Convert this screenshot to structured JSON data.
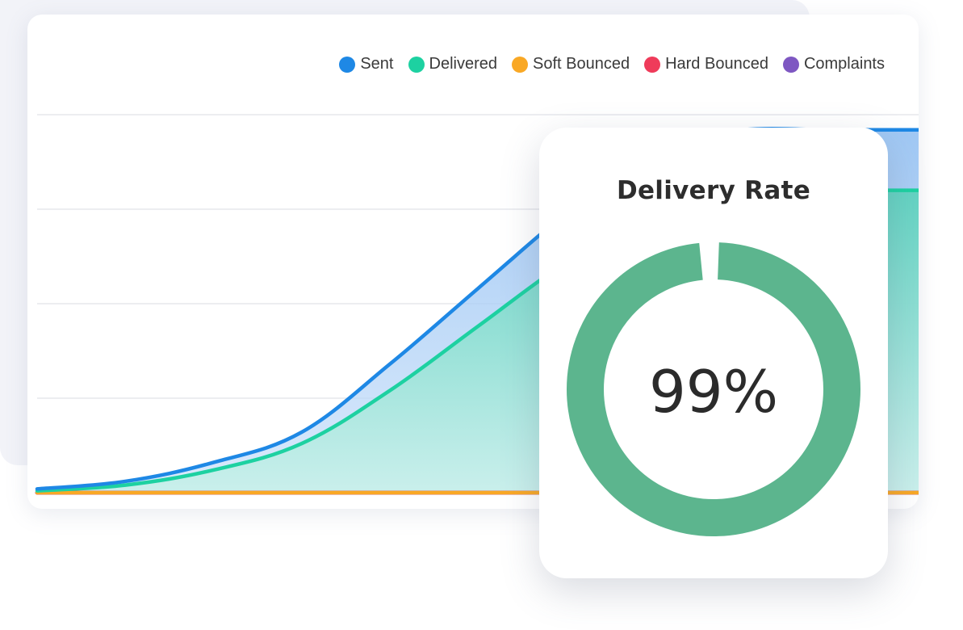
{
  "chart_data": {
    "type": "area",
    "title": "",
    "xlabel": "",
    "ylabel": "",
    "grid": true,
    "legend_position": "top-right",
    "ylim": [
      0,
      100
    ],
    "x": [
      0,
      1,
      2,
      3,
      4,
      5,
      6,
      7,
      8,
      9,
      10
    ],
    "series": [
      {
        "name": "Sent",
        "color": "#1e88e5",
        "values": [
          1,
          3,
          8,
          16,
          34,
          54,
          74,
          92,
          96,
          96,
          96
        ]
      },
      {
        "name": "Delivered",
        "color": "#1dd1a1",
        "values": [
          0.5,
          2,
          6,
          13,
          27,
          44,
          61,
          75,
          80,
          80,
          80
        ]
      },
      {
        "name": "Soft Bounced",
        "color": "#f9a825",
        "values": [
          0,
          0,
          0,
          0,
          0,
          0,
          0,
          0,
          0,
          0,
          0
        ]
      },
      {
        "name": "Hard Bounced",
        "color": "#ef3b5a",
        "values": [
          0,
          0,
          0,
          0,
          0,
          0,
          0,
          0,
          0,
          0,
          0
        ]
      },
      {
        "name": "Complaints",
        "color": "#7e57c2",
        "values": [
          0,
          0,
          0,
          0,
          0,
          0,
          0,
          0,
          0,
          0,
          0
        ]
      }
    ]
  },
  "delivery_rate": {
    "title": "Delivery Rate",
    "value_label": "99%",
    "value": 99,
    "ring_color": "#5cb58e"
  }
}
